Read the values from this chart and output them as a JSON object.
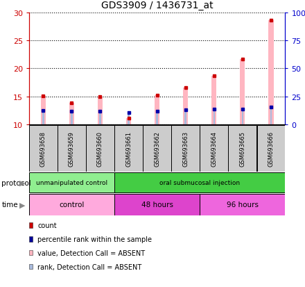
{
  "title": "GDS3909 / 1436731_at",
  "samples": [
    "GSM693658",
    "GSM693659",
    "GSM693660",
    "GSM693661",
    "GSM693662",
    "GSM693663",
    "GSM693664",
    "GSM693665",
    "GSM693666"
  ],
  "count_values": [
    15.1,
    13.8,
    15.0,
    11.1,
    15.2,
    16.6,
    18.7,
    21.7,
    28.6
  ],
  "rank_values": [
    12.2,
    12.0,
    12.1,
    10.5,
    12.1,
    12.9,
    13.4,
    13.9,
    15.8
  ],
  "ylim_left": [
    10,
    30
  ],
  "ylim_right": [
    0,
    100
  ],
  "yticks_left": [
    10,
    15,
    20,
    25,
    30
  ],
  "yticks_right": [
    0,
    25,
    50,
    75,
    100
  ],
  "ytick_labels_right": [
    "0",
    "25",
    "50",
    "75",
    "100%"
  ],
  "protocol_groups": [
    {
      "label": "unmanipulated control",
      "start": 0,
      "end": 3,
      "color": "#90EE90"
    },
    {
      "label": "oral submucosal injection",
      "start": 3,
      "end": 9,
      "color": "#44CC44"
    }
  ],
  "time_groups": [
    {
      "label": "control",
      "start": 0,
      "end": 3,
      "color": "#FFAADD"
    },
    {
      "label": "48 hours",
      "start": 3,
      "end": 6,
      "color": "#DD44CC"
    },
    {
      "label": "96 hours",
      "start": 6,
      "end": 9,
      "color": "#EE66DD"
    }
  ],
  "bar_color_count": "#FFB6C1",
  "bar_color_rank": "#AABBDD",
  "dot_color_count": "#CC0000",
  "dot_color_rank": "#0000AA",
  "bg_color": "#FFFFFF",
  "sample_box_color": "#CCCCCC",
  "left_axis_color": "#CC0000",
  "right_axis_color": "#0000CC",
  "legend_items": [
    {
      "label": "count",
      "color": "#CC0000"
    },
    {
      "label": "percentile rank within the sample",
      "color": "#000099"
    },
    {
      "label": "value, Detection Call = ABSENT",
      "color": "#FFB6C1"
    },
    {
      "label": "rank, Detection Call = ABSENT",
      "color": "#AABBDD"
    }
  ]
}
